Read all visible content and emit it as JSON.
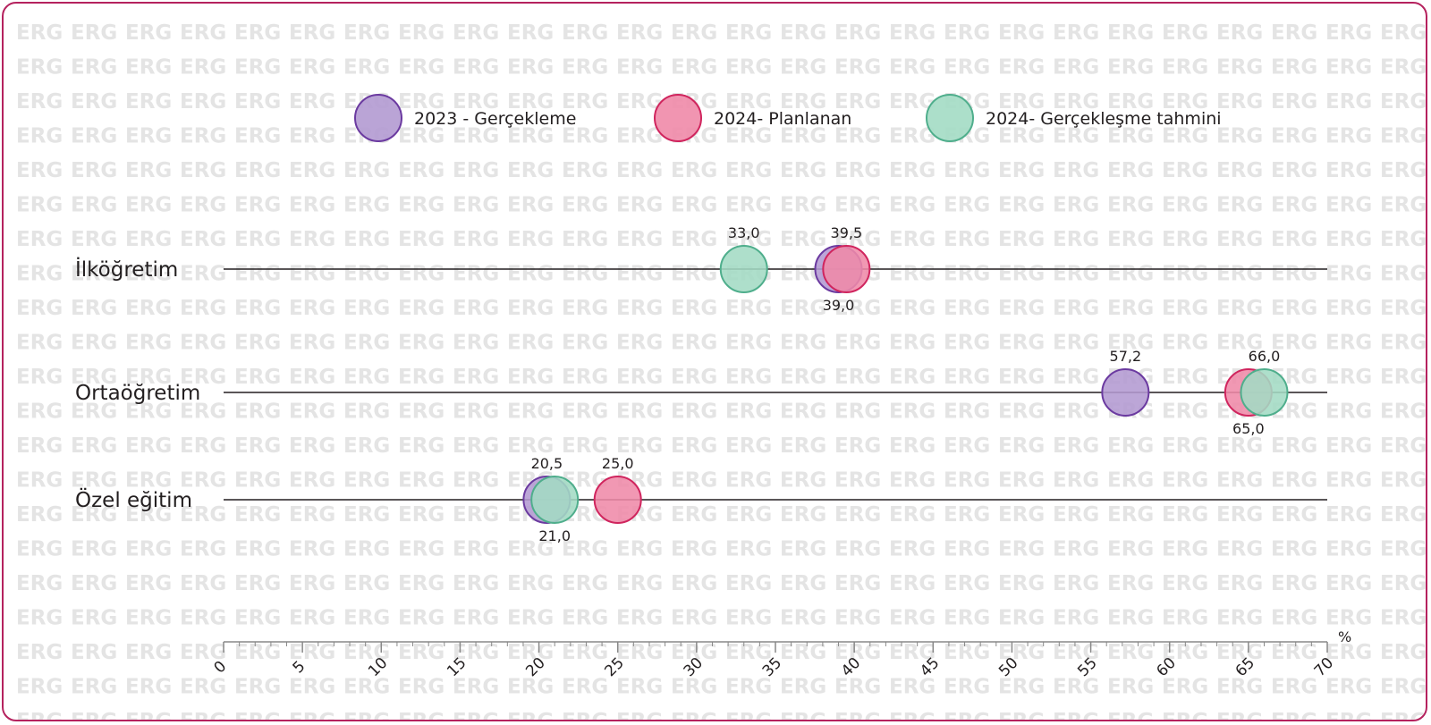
{
  "watermark": "ERG",
  "chart_data": {
    "type": "scatter",
    "subtype": "dot-plot",
    "title": "",
    "xlabel": "",
    "ylabel": "",
    "unit": "%",
    "xlim": [
      0,
      70
    ],
    "xticks": [
      0,
      5,
      10,
      15,
      20,
      25,
      30,
      35,
      40,
      45,
      50,
      55,
      60,
      65,
      70
    ],
    "grid": false,
    "legend_position": "top",
    "categories": [
      "İlköğretim",
      "Ortaöğretim",
      "Özel eğitim"
    ],
    "series": [
      {
        "name": "2023 - Gerçekleme",
        "fill": "#b39ad1",
        "stroke": "#6b3aa0",
        "values": [
          39.0,
          57.2,
          20.5
        ],
        "labels": [
          "39,0",
          "57,2",
          "20,5"
        ],
        "label_positions": [
          "below",
          "above",
          "above"
        ]
      },
      {
        "name": "2024- Planlanan",
        "fill": "#ef8aa8",
        "stroke": "#d0255e",
        "values": [
          39.5,
          65.0,
          25.0
        ],
        "labels": [
          "39,5",
          "65,0",
          "25,0"
        ],
        "label_positions": [
          "above",
          "below",
          "above"
        ]
      },
      {
        "name": "2024- Gerçekleşme tahmini",
        "fill": "#a3dbc4",
        "stroke": "#4fae8c",
        "values": [
          33.0,
          66.0,
          21.0
        ],
        "labels": [
          "33,0",
          "66,0",
          "21,0"
        ],
        "label_positions": [
          "above",
          "above",
          "below"
        ]
      }
    ],
    "draw_order": [
      [
        2,
        0,
        1
      ],
      [
        0,
        1,
        2
      ],
      [
        0,
        2,
        1
      ]
    ]
  }
}
